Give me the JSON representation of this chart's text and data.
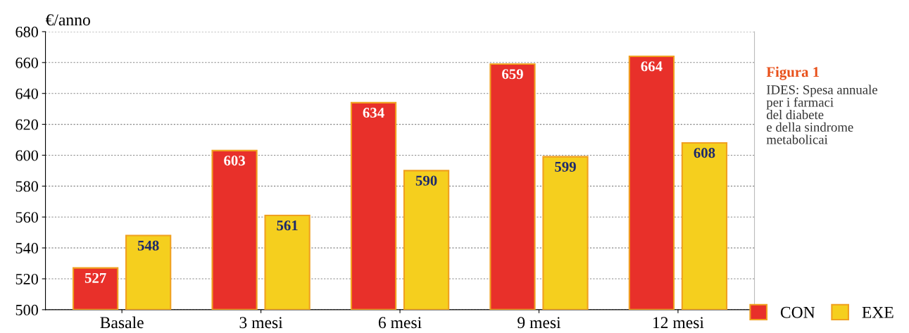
{
  "chart_data": {
    "type": "bar",
    "title": "Figura 1",
    "subtitle": "IDES: Spesa annuale\nper i farmaci\ndel diabete\ne della sindrome\nmetabolicai",
    "ylabel": "€/anno",
    "categories": [
      "Basale",
      "3 mesi",
      "6 mesi",
      "9 mesi",
      "12 mesi"
    ],
    "series": [
      {
        "name": "CON",
        "color": "#e8302a",
        "values": [
          527,
          603,
          634,
          659,
          664
        ]
      },
      {
        "name": "EXE",
        "color": "#f5cf1e",
        "values": [
          548,
          561,
          590,
          599,
          608
        ]
      }
    ],
    "ylim": [
      500,
      680
    ],
    "yticks": [
      500,
      520,
      540,
      560,
      580,
      600,
      620,
      640,
      660,
      680
    ],
    "grid": "y",
    "legend": "bottom right",
    "data_labels": true
  }
}
